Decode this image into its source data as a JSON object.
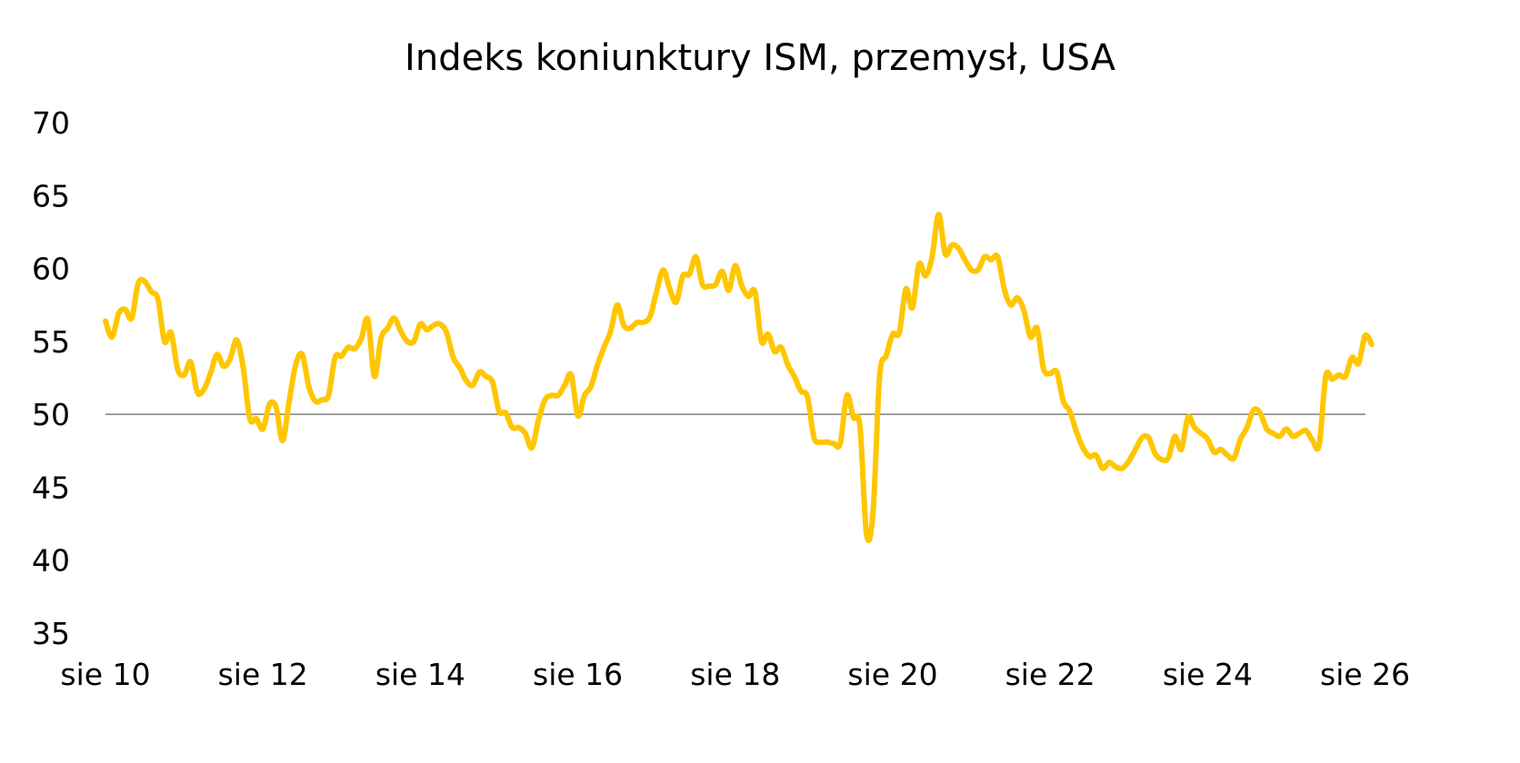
{
  "chart_data": {
    "type": "line",
    "title": "Indeks koniunktury ISM, przemysł, USA",
    "xlabel": "",
    "ylabel": "",
    "ylim": [
      35,
      70
    ],
    "yticks": [
      "70",
      "65",
      "60",
      "55",
      "50",
      "45",
      "40",
      "35"
    ],
    "yticks_values": [
      70,
      65,
      60,
      55,
      50,
      45,
      40,
      35
    ],
    "xticks": [
      "sie 10",
      "sie 12",
      "sie 14",
      "sie 16",
      "sie 18",
      "sie 20",
      "sie 22",
      "sie 24",
      "sie 26"
    ],
    "reference_line": 50,
    "grid": false,
    "legend": "none",
    "line_color": "#FFC600",
    "reference_line_color": "#666666",
    "x_start": "sie 10",
    "x_frequency": "monthly",
    "values": [
      56.4,
      55.3,
      56.9,
      57.2,
      56.6,
      59.0,
      59.1,
      58.4,
      57.9,
      55.0,
      55.6,
      53.1,
      52.7,
      53.6,
      51.5,
      51.7,
      52.8,
      54.1,
      53.3,
      53.8,
      55.1,
      53.2,
      49.7,
      49.7,
      49.0,
      50.7,
      50.5,
      48.2,
      50.9,
      53.4,
      54.1,
      51.9,
      50.9,
      51.0,
      51.3,
      53.9,
      54.0,
      54.6,
      54.5,
      55.2,
      56.5,
      52.6,
      55.2,
      55.9,
      56.6,
      55.7,
      55.0,
      55.0,
      56.2,
      55.8,
      56.1,
      56.2,
      55.6,
      53.9,
      53.2,
      52.3,
      52.0,
      52.9,
      52.6,
      52.2,
      50.2,
      50.1,
      49.1,
      49.1,
      48.7,
      47.7,
      49.6,
      51.0,
      51.3,
      51.3,
      52.0,
      52.7,
      49.9,
      51.3,
      51.9,
      53.4,
      54.6,
      55.7,
      57.5,
      56.1,
      55.9,
      56.3,
      56.3,
      56.7,
      58.4,
      59.9,
      58.6,
      57.7,
      59.5,
      59.6,
      60.8,
      58.9,
      58.8,
      58.9,
      59.8,
      58.5,
      60.2,
      58.8,
      58.1,
      58.4,
      55.0,
      55.5,
      54.3,
      54.6,
      53.4,
      52.6,
      51.6,
      51.2,
      48.4,
      48.1,
      48.1,
      48.0,
      48.0,
      51.3,
      49.8,
      49.2,
      41.8,
      43.3,
      52.6,
      54.0,
      55.5,
      55.6,
      58.6,
      57.3,
      60.3,
      59.5,
      60.8,
      63.7,
      61.0,
      61.6,
      61.4,
      60.6,
      59.9,
      59.9,
      60.8,
      60.6,
      60.8,
      58.6,
      57.5,
      58.0,
      57.1,
      55.3,
      55.9,
      53.1,
      52.8,
      52.9,
      50.9,
      50.2,
      48.8,
      47.7,
      47.1,
      47.2,
      46.3,
      46.7,
      46.4,
      46.3,
      46.8,
      47.6,
      48.4,
      48.4,
      47.3,
      46.9,
      47.0,
      48.5,
      47.6,
      49.8,
      49.1,
      48.7,
      48.3,
      47.4,
      47.6,
      47.2,
      47.0,
      48.3,
      49.1,
      50.3,
      50.1,
      49.0,
      48.7,
      48.5,
      49.0,
      48.5,
      48.7,
      48.9,
      48.2,
      47.9,
      52.6,
      52.4,
      52.7,
      52.6,
      53.9,
      53.5,
      55.4,
      54.8
    ]
  }
}
